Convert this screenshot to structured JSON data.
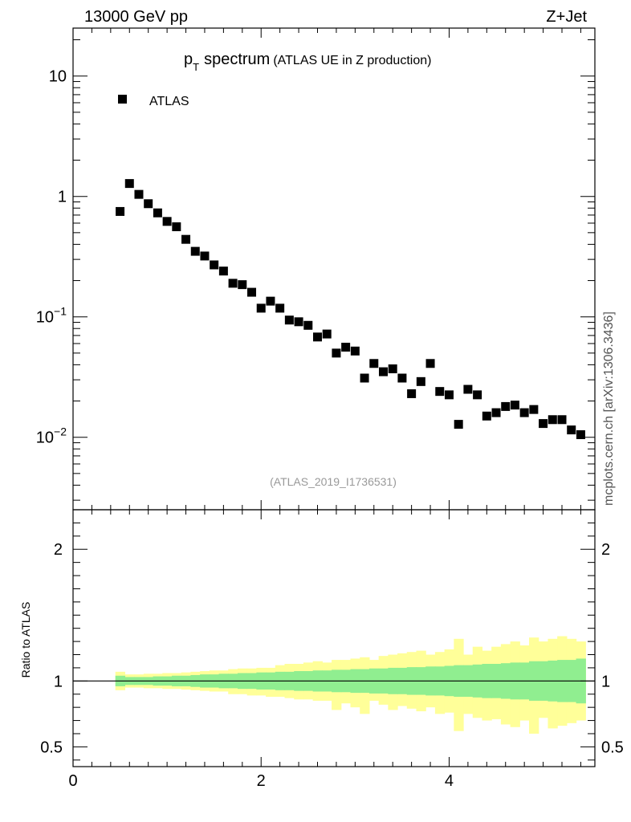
{
  "header": {
    "energy_label": "13000 GeV pp",
    "process_label": "Z+Jet"
  },
  "side_label": "mcplots.cern.ch [arXiv:1306.3436]",
  "chart_data": [
    {
      "type": "scatter",
      "title_main": "p",
      "title_sub": "T",
      "title_word": "spectrum",
      "title_paren": "(ATLAS UE in Z production)",
      "analysis_label": "(ATLAS_2019_I1736531)",
      "legend": [
        "ATLAS"
      ],
      "yscale": "log",
      "xlim": [
        0,
        5.55
      ],
      "ylim": [
        0.0025,
        25
      ],
      "yticks": [
        {
          "v": 0.01,
          "base": "10",
          "exp": "−2"
        },
        {
          "v": 0.1,
          "base": "10",
          "exp": "−1"
        },
        {
          "v": 1,
          "base": "1",
          "exp": ""
        },
        {
          "v": 10,
          "base": "10",
          "exp": ""
        }
      ],
      "series": [
        {
          "name": "ATLAS",
          "x": [
            0.5,
            0.6,
            0.7,
            0.8,
            0.9,
            1.0,
            1.1,
            1.2,
            1.3,
            1.4,
            1.5,
            1.6,
            1.7,
            1.8,
            1.9,
            2.0,
            2.1,
            2.2,
            2.3,
            2.4,
            2.5,
            2.6,
            2.7,
            2.8,
            2.9,
            3.0,
            3.1,
            3.2,
            3.3,
            3.4,
            3.5,
            3.6,
            3.7,
            3.8,
            3.9,
            4.0,
            4.1,
            4.2,
            4.3,
            4.4,
            4.5,
            4.6,
            4.7,
            4.8,
            4.9,
            5.0,
            5.1,
            5.2,
            5.3,
            5.4
          ],
          "y": [
            0.75,
            1.28,
            1.04,
            0.87,
            0.73,
            0.62,
            0.56,
            0.44,
            0.35,
            0.32,
            0.27,
            0.24,
            0.19,
            0.185,
            0.16,
            0.118,
            0.135,
            0.118,
            0.094,
            0.091,
            0.085,
            0.068,
            0.072,
            0.05,
            0.056,
            0.052,
            0.031,
            0.041,
            0.035,
            0.037,
            0.031,
            0.023,
            0.029,
            0.041,
            0.024,
            0.0225,
            0.0128,
            0.025,
            0.0225,
            0.015,
            0.016,
            0.018,
            0.0185,
            0.016,
            0.017,
            0.013,
            0.014,
            0.014,
            0.0115,
            0.0105
          ]
        }
      ]
    },
    {
      "type": "area",
      "ylabel": "Ratio to ATLAS",
      "xlim": [
        0,
        5.55
      ],
      "ylim": [
        0.35,
        2.3
      ],
      "yticks": [
        0.5,
        1,
        2
      ],
      "xticks": [
        0,
        2,
        4
      ],
      "bin_edges": [
        0.45,
        0.55,
        0.65,
        0.75,
        0.85,
        0.95,
        1.05,
        1.15,
        1.25,
        1.35,
        1.45,
        1.55,
        1.65,
        1.75,
        1.85,
        1.95,
        2.05,
        2.15,
        2.25,
        2.35,
        2.45,
        2.55,
        2.65,
        2.75,
        2.85,
        2.95,
        3.05,
        3.15,
        3.25,
        3.35,
        3.45,
        3.55,
        3.65,
        3.75,
        3.85,
        3.95,
        4.05,
        4.15,
        4.25,
        4.35,
        4.45,
        4.55,
        4.65,
        4.75,
        4.85,
        4.95,
        5.05,
        5.15,
        5.25,
        5.35,
        5.45
      ],
      "band_inner": {
        "name": "stat",
        "color": "#90ee90",
        "hi": [
          1.04,
          1.03,
          1.03,
          1.03,
          1.035,
          1.035,
          1.04,
          1.04,
          1.045,
          1.05,
          1.05,
          1.055,
          1.055,
          1.06,
          1.06,
          1.065,
          1.065,
          1.07,
          1.07,
          1.075,
          1.075,
          1.08,
          1.08,
          1.085,
          1.085,
          1.09,
          1.09,
          1.095,
          1.095,
          1.1,
          1.1,
          1.105,
          1.105,
          1.11,
          1.11,
          1.115,
          1.12,
          1.12,
          1.125,
          1.13,
          1.13,
          1.135,
          1.14,
          1.14,
          1.15,
          1.15,
          1.155,
          1.16,
          1.16,
          1.17
        ],
        "lo": [
          0.96,
          0.97,
          0.97,
          0.97,
          0.965,
          0.965,
          0.96,
          0.96,
          0.955,
          0.95,
          0.95,
          0.945,
          0.945,
          0.94,
          0.94,
          0.935,
          0.935,
          0.93,
          0.93,
          0.925,
          0.925,
          0.92,
          0.92,
          0.915,
          0.915,
          0.91,
          0.91,
          0.905,
          0.905,
          0.9,
          0.9,
          0.895,
          0.895,
          0.89,
          0.89,
          0.885,
          0.88,
          0.88,
          0.875,
          0.87,
          0.87,
          0.865,
          0.86,
          0.86,
          0.85,
          0.85,
          0.845,
          0.84,
          0.84,
          0.83
        ]
      },
      "band_outer": {
        "name": "total",
        "color": "#ffff99",
        "hi": [
          1.07,
          1.05,
          1.05,
          1.055,
          1.055,
          1.06,
          1.06,
          1.065,
          1.07,
          1.075,
          1.08,
          1.08,
          1.09,
          1.095,
          1.095,
          1.1,
          1.1,
          1.12,
          1.13,
          1.13,
          1.14,
          1.15,
          1.14,
          1.16,
          1.16,
          1.17,
          1.18,
          1.16,
          1.19,
          1.2,
          1.21,
          1.22,
          1.23,
          1.2,
          1.22,
          1.24,
          1.32,
          1.2,
          1.26,
          1.23,
          1.26,
          1.28,
          1.3,
          1.27,
          1.33,
          1.3,
          1.32,
          1.34,
          1.32,
          1.3
        ],
        "lo": [
          0.93,
          0.95,
          0.95,
          0.945,
          0.945,
          0.94,
          0.94,
          0.935,
          0.93,
          0.925,
          0.92,
          0.92,
          0.9,
          0.9,
          0.89,
          0.89,
          0.88,
          0.88,
          0.87,
          0.86,
          0.86,
          0.85,
          0.85,
          0.78,
          0.83,
          0.8,
          0.75,
          0.85,
          0.82,
          0.78,
          0.81,
          0.79,
          0.77,
          0.8,
          0.75,
          0.76,
          0.62,
          0.75,
          0.72,
          0.7,
          0.71,
          0.67,
          0.65,
          0.7,
          0.6,
          0.72,
          0.64,
          0.66,
          0.68,
          0.7
        ]
      }
    }
  ]
}
